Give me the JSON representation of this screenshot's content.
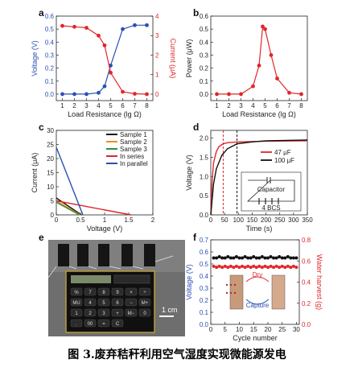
{
  "caption": "图 3.废弃秸秆利用空气湿度实现微能源发电",
  "panel_labels": [
    "a",
    "b",
    "c",
    "d",
    "e",
    "f"
  ],
  "photo": {
    "scale_label": "1 cm",
    "calculator_keys": [
      "%",
      "7",
      "8",
      "9",
      "×",
      "÷",
      "MU",
      "4",
      "5",
      "6",
      "−",
      "M+",
      "1",
      "2",
      "3",
      "+",
      "M−",
      "0",
      ".",
      "00",
      "=",
      "C"
    ]
  },
  "colors": {
    "blue": "#2a4fb5",
    "red": "#e0262b",
    "black": "#111111",
    "orange": "#f08a1c",
    "green": "#2f8f3a"
  },
  "chart_data": [
    {
      "panel": "a",
      "type": "line",
      "xlabel": "Load Resistance (lg Ω)",
      "ylabel_left": "Voltage (V)",
      "ylabel_right": "Current (μA)",
      "xlim": [
        0.5,
        8.5
      ],
      "ylim_left": [
        -0.05,
        0.6
      ],
      "ylim_right": [
        -0.33,
        4.0
      ],
      "x_ticks": [
        1,
        2,
        3,
        4,
        5,
        6,
        7,
        8
      ],
      "y_ticks_left": [
        0.0,
        0.1,
        0.2,
        0.3,
        0.4,
        0.5,
        0.6
      ],
      "y_ticks_right": [
        0,
        1,
        2,
        3,
        4
      ],
      "series": [
        {
          "axis": "left",
          "color": "blue",
          "x": [
            1,
            2,
            3,
            4,
            4.5,
            5,
            6,
            7,
            8
          ],
          "values": [
            0.0,
            0.0,
            0.0,
            0.01,
            0.06,
            0.22,
            0.5,
            0.53,
            0.53
          ]
        },
        {
          "axis": "right",
          "color": "red",
          "x": [
            1,
            2,
            3,
            4,
            4.5,
            5,
            6,
            7,
            8
          ],
          "values": [
            3.5,
            3.45,
            3.4,
            3.0,
            2.5,
            1.1,
            0.12,
            0.02,
            0.0
          ]
        }
      ]
    },
    {
      "panel": "b",
      "type": "line",
      "xlabel": "Load Resistance (lg Ω)",
      "ylabel": "Power (μW)",
      "xlim": [
        0.5,
        8.5
      ],
      "ylim": [
        -0.05,
        0.6
      ],
      "x_ticks": [
        1,
        2,
        3,
        4,
        5,
        6,
        7,
        8
      ],
      "y_ticks": [
        0.0,
        0.1,
        0.2,
        0.3,
        0.4,
        0.5,
        0.6
      ],
      "series": [
        {
          "color": "red",
          "x": [
            1,
            2,
            3,
            4,
            4.5,
            4.8,
            5,
            5.5,
            6,
            7,
            8
          ],
          "values": [
            0.0,
            0.0,
            0.0,
            0.06,
            0.22,
            0.52,
            0.5,
            0.3,
            0.12,
            0.01,
            0.0
          ]
        }
      ]
    },
    {
      "panel": "c",
      "type": "line",
      "xlabel": "Voltage (V)",
      "ylabel": "Current (μA)",
      "xlim": [
        0,
        2.0
      ],
      "ylim": [
        0,
        30
      ],
      "x_ticks": [
        0.0,
        0.5,
        1.0,
        1.5,
        2.0
      ],
      "y_ticks": [
        0,
        5,
        10,
        15,
        20,
        25,
        30
      ],
      "legend_position": "top-right",
      "series": [
        {
          "name": "Sample 1",
          "color": "black",
          "x": [
            0,
            0.52
          ],
          "values": [
            6,
            0
          ]
        },
        {
          "name": "Sample 2",
          "color": "orange",
          "x": [
            0,
            0.5
          ],
          "values": [
            5,
            0
          ]
        },
        {
          "name": "Sample 3",
          "color": "green",
          "x": [
            0,
            0.48
          ],
          "values": [
            4.5,
            0
          ]
        },
        {
          "name": "In series",
          "color": "red",
          "x": [
            0,
            1.55
          ],
          "values": [
            5,
            0
          ]
        },
        {
          "name": "In parallel",
          "color": "blue",
          "x": [
            0,
            0.55
          ],
          "values": [
            24,
            0
          ]
        }
      ]
    },
    {
      "panel": "d",
      "type": "line",
      "xlabel": "Time (s)",
      "ylabel": "Voltage (V)",
      "xlim": [
        0,
        350
      ],
      "ylim": [
        0,
        2.2
      ],
      "x_ticks": [
        0,
        50,
        100,
        150,
        200,
        250,
        300,
        350
      ],
      "y_ticks": [
        0.0,
        0.5,
        1.0,
        1.5,
        2.0
      ],
      "vlines": [
        {
          "x": 45,
          "color": "red"
        },
        {
          "x": 95,
          "color": "black"
        }
      ],
      "legend_position": "center-right",
      "circuit_labels": {
        "capacitor": "Capacitor",
        "battery": "4 BCS"
      },
      "series": [
        {
          "name": "47 μF",
          "color": "red",
          "x": [
            0,
            5,
            10,
            20,
            30,
            45,
            60,
            100,
            200,
            350
          ],
          "values": [
            0,
            0.9,
            1.35,
            1.65,
            1.78,
            1.85,
            1.88,
            1.9,
            1.92,
            1.93
          ]
        },
        {
          "name": "100 μF",
          "color": "black",
          "x": [
            0,
            10,
            20,
            40,
            60,
            95,
            150,
            200,
            350
          ],
          "values": [
            0,
            0.8,
            1.2,
            1.55,
            1.72,
            1.85,
            1.9,
            1.93,
            1.95
          ]
        }
      ]
    },
    {
      "panel": "f",
      "type": "scatter",
      "xlabel": "Cycle number",
      "ylabel_left": "Voltage (V)",
      "ylabel_right": "Water harvest (g)",
      "xlim": [
        0,
        31
      ],
      "ylim_left": [
        0,
        0.7
      ],
      "ylim_right": [
        0,
        0.8
      ],
      "x_ticks": [
        0,
        5,
        10,
        15,
        20,
        25,
        30
      ],
      "y_ticks_left": [
        0.0,
        0.1,
        0.2,
        0.3,
        0.4,
        0.5,
        0.6,
        0.7
      ],
      "y_ticks_right": [
        0.0,
        0.2,
        0.4,
        0.6,
        0.8
      ],
      "inset_labels": {
        "top": "Dry",
        "bottom": "Capture"
      },
      "series": [
        {
          "axis": "left",
          "color": "black",
          "x": [
            1,
            2,
            3,
            4,
            5,
            6,
            7,
            8,
            9,
            10,
            11,
            12,
            13,
            14,
            15,
            16,
            17,
            18,
            19,
            20,
            21,
            22,
            23,
            24,
            25,
            26,
            27,
            28,
            29,
            30
          ],
          "values": [
            0.55,
            0.55,
            0.56,
            0.55,
            0.55,
            0.56,
            0.55,
            0.55,
            0.56,
            0.55,
            0.55,
            0.56,
            0.55,
            0.55,
            0.56,
            0.55,
            0.55,
            0.56,
            0.55,
            0.55,
            0.56,
            0.55,
            0.55,
            0.56,
            0.55,
            0.55,
            0.56,
            0.55,
            0.55,
            0.55
          ]
        },
        {
          "axis": "right",
          "color": "red",
          "x": [
            1,
            2,
            3,
            4,
            5,
            6,
            7,
            8,
            9,
            10,
            11,
            12,
            13,
            14,
            15,
            16,
            17,
            18,
            19,
            20,
            21,
            22,
            23,
            24,
            25,
            26,
            27,
            28,
            29,
            30
          ],
          "values": [
            0.55,
            0.54,
            0.55,
            0.54,
            0.55,
            0.54,
            0.55,
            0.54,
            0.55,
            0.54,
            0.55,
            0.54,
            0.55,
            0.54,
            0.55,
            0.54,
            0.55,
            0.54,
            0.55,
            0.54,
            0.55,
            0.54,
            0.55,
            0.54,
            0.55,
            0.54,
            0.55,
            0.54,
            0.55,
            0.54
          ]
        }
      ]
    }
  ]
}
